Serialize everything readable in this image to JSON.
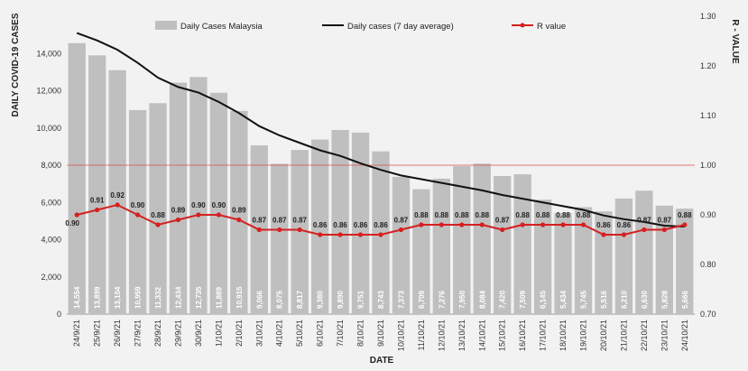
{
  "chart_data": {
    "type": "bar",
    "ylabel": "DAILY COVID-19 CASES",
    "ylabel_right": "R - VALUE",
    "xlabel": "DATE",
    "ylim": [
      0,
      16000
    ],
    "yticks": [
      "0",
      "2,000",
      "4,000",
      "6,000",
      "8,000",
      "10,000",
      "12,000",
      "14,000"
    ],
    "ylim_right": [
      0.7,
      1.3
    ],
    "yticks_right": [
      "0.70",
      "0.80",
      "0.90",
      "1.00",
      "1.10",
      "1.20",
      "1.30"
    ],
    "reference_line": 1.0,
    "grid": false,
    "legend_position": "top",
    "categories": [
      "24/9/21",
      "25/9/21",
      "26/9/21",
      "27/9/21",
      "28/9/21",
      "29/9/21",
      "30/9/21",
      "1/10/21",
      "2/10/21",
      "3/10/21",
      "4/10/21",
      "5/10/21",
      "6/10/21",
      "7/10/21",
      "8/10/21",
      "9/10/21",
      "10/10/21",
      "11/10/21",
      "12/10/21",
      "13/10/21",
      "14/10/21",
      "15/10/21",
      "16/10/21",
      "17/10/21",
      "18/10/21",
      "19/10/21",
      "20/10/21",
      "21/10/21",
      "22/10/21",
      "23/10/21",
      "24/10/21"
    ],
    "series": [
      {
        "name": "Daily Cases Malaysia",
        "kind": "bar",
        "color": "#bfbfbf",
        "values": [
          14554,
          13899,
          13104,
          10959,
          11332,
          12434,
          12735,
          11889,
          10915,
          9066,
          8075,
          8817,
          9380,
          9890,
          9751,
          8743,
          7373,
          6709,
          7276,
          7950,
          8084,
          7420,
          7509,
          6145,
          5434,
          5745,
          5516,
          6210,
          6630,
          5828,
          5666
        ],
        "labels": [
          "14,554",
          "13,899",
          "13,104",
          "10,959",
          "11,332",
          "12,434",
          "12,735",
          "11,889",
          "10,915",
          "9,066",
          "8,075",
          "8,817",
          "9,380",
          "9,890",
          "9,751",
          "8,743",
          "7,373",
          "6,709",
          "7,276",
          "7,950",
          "8,084",
          "7,420",
          "7,509",
          "6,145",
          "5,434",
          "5,745",
          "5,516",
          "6,210",
          "6,630",
          "5,828",
          "5,666"
        ]
      },
      {
        "name": "Daily cases (7 day average)",
        "kind": "line",
        "color": "#111111",
        "values": [
          15100,
          14700,
          14200,
          13500,
          12700,
          12200,
          11900,
          11400,
          10800,
          10100,
          9600,
          9200,
          8800,
          8500,
          8100,
          7750,
          7450,
          7250,
          7050,
          6850,
          6650,
          6400,
          6200,
          6000,
          5800,
          5600,
          5300,
          5100,
          4950,
          4750,
          4700
        ]
      },
      {
        "name": "R value",
        "kind": "line",
        "axis": "right",
        "color": "#d62020",
        "values": [
          0.9,
          0.91,
          0.92,
          0.9,
          0.88,
          0.89,
          0.9,
          0.9,
          0.89,
          0.87,
          0.87,
          0.87,
          0.86,
          0.86,
          0.86,
          0.86,
          0.87,
          0.88,
          0.88,
          0.88,
          0.88,
          0.87,
          0.88,
          0.88,
          0.88,
          0.88,
          0.86,
          0.86,
          0.87,
          0.87,
          0.88
        ],
        "labels": [
          "0.90",
          "0.91",
          "0.92",
          "0.90",
          "0.88",
          "0.89",
          "0.90",
          "0.90",
          "0.89",
          "0.87",
          "0.87",
          "0.87",
          "0.86",
          "0.86",
          "0.86",
          "0.86",
          "0.87",
          "0.88",
          "0.88",
          "0.88",
          "0.88",
          "0.87",
          "0.88",
          "0.88",
          "0.88",
          "0.88",
          "0.86",
          "0.86",
          "0.87",
          "0.87",
          "0.88"
        ]
      }
    ]
  }
}
